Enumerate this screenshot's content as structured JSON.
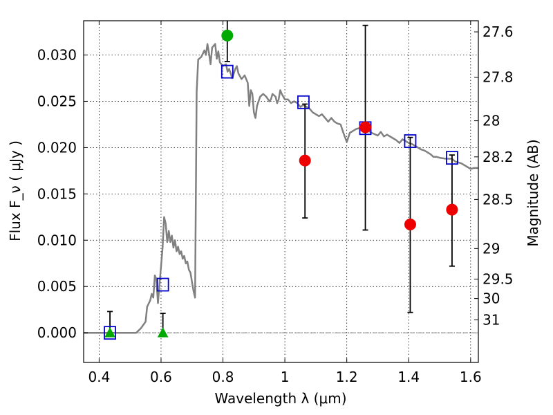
{
  "chart_data": {
    "type": "scatter",
    "xlabel": "Wavelength  λ (μm)",
    "ylabel": "Flux  F_ν  ( μJy )",
    "ylabel_right": "Magnitude (AB)",
    "xlim": [
      0.35,
      1.625
    ],
    "ylim": [
      -0.0032,
      0.0337
    ],
    "grid": true,
    "xticks": [
      0.4,
      0.6,
      0.8,
      1.0,
      1.2,
      1.4,
      1.6
    ],
    "xtick_labels": [
      "0.4",
      "0.6",
      "0.8",
      "1",
      "1.2",
      "1.4",
      "1.6"
    ],
    "yticks": [
      0.0,
      0.005,
      0.01,
      0.015,
      0.02,
      0.025,
      0.03
    ],
    "ytick_labels": [
      "0.000",
      "0.005",
      "0.010",
      "0.015",
      "0.020",
      "0.025",
      "0.030"
    ],
    "right_ticks": [
      {
        "label": "27.6",
        "flux": 0.0325
      },
      {
        "label": "27.8",
        "flux": 0.0276
      },
      {
        "label": "28",
        "flux": 0.0229
      },
      {
        "label": "28.2",
        "flux": 0.019
      },
      {
        "label": "28.5",
        "flux": 0.0144
      },
      {
        "label": "29",
        "flux": 0.0091
      },
      {
        "label": "29.5",
        "flux": 0.0058
      },
      {
        "label": "30",
        "flux": 0.0037
      },
      {
        "label": "31",
        "flux": 0.0014
      }
    ],
    "series": [
      {
        "kind": "model_sed_line",
        "color": "#808080",
        "points": [
          [
            0.35,
            0.0
          ],
          [
            0.52,
            0.0
          ],
          [
            0.535,
            0.0005
          ],
          [
            0.55,
            0.0012
          ],
          [
            0.555,
            0.0028
          ],
          [
            0.565,
            0.0035
          ],
          [
            0.57,
            0.0042
          ],
          [
            0.575,
            0.0038
          ],
          [
            0.58,
            0.0062
          ],
          [
            0.585,
            0.0058
          ],
          [
            0.59,
            0.0032
          ],
          [
            0.595,
            0.0052
          ],
          [
            0.6,
            0.0072
          ],
          [
            0.605,
            0.0092
          ],
          [
            0.61,
            0.0125
          ],
          [
            0.615,
            0.0118
          ],
          [
            0.62,
            0.0098
          ],
          [
            0.625,
            0.011
          ],
          [
            0.63,
            0.0098
          ],
          [
            0.635,
            0.0105
          ],
          [
            0.64,
            0.0092
          ],
          [
            0.645,
            0.01
          ],
          [
            0.65,
            0.0088
          ],
          [
            0.655,
            0.0093
          ],
          [
            0.66,
            0.0085
          ],
          [
            0.665,
            0.0088
          ],
          [
            0.67,
            0.008
          ],
          [
            0.675,
            0.0083
          ],
          [
            0.68,
            0.0075
          ],
          [
            0.685,
            0.0077
          ],
          [
            0.69,
            0.0068
          ],
          [
            0.695,
            0.0065
          ],
          [
            0.7,
            0.0055
          ],
          [
            0.705,
            0.0045
          ],
          [
            0.71,
            0.0038
          ],
          [
            0.715,
            0.026
          ],
          [
            0.72,
            0.0295
          ],
          [
            0.73,
            0.0298
          ],
          [
            0.74,
            0.0305
          ],
          [
            0.745,
            0.03
          ],
          [
            0.75,
            0.0312
          ],
          [
            0.755,
            0.0302
          ],
          [
            0.76,
            0.029
          ],
          [
            0.765,
            0.0308
          ],
          [
            0.775,
            0.0312
          ],
          [
            0.78,
            0.0296
          ],
          [
            0.785,
            0.0304
          ],
          [
            0.79,
            0.0292
          ],
          [
            0.8,
            0.0288
          ],
          [
            0.81,
            0.029
          ],
          [
            0.815,
            0.0282
          ],
          [
            0.82,
            0.0285
          ],
          [
            0.83,
            0.0275
          ],
          [
            0.84,
            0.0285
          ],
          [
            0.845,
            0.0288
          ],
          [
            0.85,
            0.028
          ],
          [
            0.86,
            0.0274
          ],
          [
            0.87,
            0.0278
          ],
          [
            0.88,
            0.027
          ],
          [
            0.885,
            0.0245
          ],
          [
            0.89,
            0.0262
          ],
          [
            0.895,
            0.0258
          ],
          [
            0.9,
            0.0238
          ],
          [
            0.905,
            0.0232
          ],
          [
            0.91,
            0.0245
          ],
          [
            0.92,
            0.0255
          ],
          [
            0.93,
            0.0258
          ],
          [
            0.94,
            0.0255
          ],
          [
            0.95,
            0.025
          ],
          [
            0.955,
            0.0252
          ],
          [
            0.96,
            0.0258
          ],
          [
            0.97,
            0.0255
          ],
          [
            0.975,
            0.0248
          ],
          [
            0.98,
            0.0252
          ],
          [
            0.985,
            0.0262
          ],
          [
            0.99,
            0.0258
          ],
          [
            1.0,
            0.0252
          ],
          [
            1.01,
            0.0252
          ],
          [
            1.02,
            0.0248
          ],
          [
            1.03,
            0.025
          ],
          [
            1.04,
            0.0248
          ],
          [
            1.05,
            0.0244
          ],
          [
            1.06,
            0.0246
          ],
          [
            1.07,
            0.0244
          ],
          [
            1.08,
            0.0242
          ],
          [
            1.09,
            0.0238
          ],
          [
            1.1,
            0.0236
          ],
          [
            1.11,
            0.0234
          ],
          [
            1.12,
            0.0236
          ],
          [
            1.13,
            0.0232
          ],
          [
            1.14,
            0.0228
          ],
          [
            1.15,
            0.0232
          ],
          [
            1.16,
            0.0228
          ],
          [
            1.17,
            0.0226
          ],
          [
            1.18,
            0.0225
          ],
          [
            1.19,
            0.0215
          ],
          [
            1.2,
            0.0206
          ],
          [
            1.21,
            0.0216
          ],
          [
            1.22,
            0.0218
          ],
          [
            1.23,
            0.022
          ],
          [
            1.24,
            0.0221
          ],
          [
            1.25,
            0.0222
          ],
          [
            1.26,
            0.022
          ],
          [
            1.27,
            0.0218
          ],
          [
            1.28,
            0.0216
          ],
          [
            1.3,
            0.0213
          ],
          [
            1.31,
            0.0217
          ],
          [
            1.32,
            0.0212
          ],
          [
            1.33,
            0.0214
          ],
          [
            1.35,
            0.021
          ],
          [
            1.36,
            0.0208
          ],
          [
            1.37,
            0.0205
          ],
          [
            1.38,
            0.0209
          ],
          [
            1.39,
            0.0207
          ],
          [
            1.4,
            0.0205
          ],
          [
            1.41,
            0.0204
          ],
          [
            1.42,
            0.0202
          ],
          [
            1.43,
            0.02
          ],
          [
            1.44,
            0.0198
          ],
          [
            1.45,
            0.0197
          ],
          [
            1.46,
            0.0195
          ],
          [
            1.47,
            0.0193
          ],
          [
            1.48,
            0.019
          ],
          [
            1.49,
            0.019
          ],
          [
            1.5,
            0.0189
          ],
          [
            1.52,
            0.0188
          ],
          [
            1.54,
            0.0188
          ],
          [
            1.55,
            0.0185
          ],
          [
            1.56,
            0.0184
          ],
          [
            1.57,
            0.0183
          ],
          [
            1.58,
            0.0181
          ],
          [
            1.59,
            0.0179
          ],
          [
            1.6,
            0.0177
          ],
          [
            1.61,
            0.0178
          ],
          [
            1.625,
            0.0178
          ]
        ]
      },
      {
        "kind": "model_band_flux",
        "marker": "open-square",
        "color": "#0000cc",
        "points": [
          [
            0.435,
            0.0
          ],
          [
            0.606,
            0.0052
          ],
          [
            0.814,
            0.0282
          ],
          [
            1.06,
            0.0249
          ],
          [
            1.26,
            0.0221
          ],
          [
            1.405,
            0.0207
          ],
          [
            1.54,
            0.0189
          ]
        ]
      },
      {
        "kind": "nondetection",
        "marker": "triangle",
        "color": "#00aa00",
        "points": [
          [
            0.435,
            0.0
          ],
          [
            0.606,
            0.0
          ]
        ]
      },
      {
        "kind": "detection",
        "marker": "circle",
        "color": "#00aa00",
        "points": [
          [
            0.814,
            0.0321
          ]
        ]
      },
      {
        "kind": "detection",
        "marker": "circle",
        "color": "#ee0000",
        "points": [
          [
            1.065,
            0.0186
          ],
          [
            1.26,
            0.0222
          ],
          [
            1.405,
            0.0117
          ],
          [
            1.54,
            0.0133
          ]
        ]
      }
    ],
    "errorbars": [
      {
        "x": 0.435,
        "low": 0.0,
        "high": 0.0023
      },
      {
        "x": 0.606,
        "low": -0.0001,
        "high": 0.0021
      },
      {
        "x": 0.814,
        "low": 0.0293,
        "high": 0.0337
      },
      {
        "x": 1.065,
        "low": 0.0124,
        "high": 0.0247
      },
      {
        "x": 1.26,
        "low": 0.0111,
        "high": 0.0332
      },
      {
        "x": 1.405,
        "low": 0.0022,
        "high": 0.0211
      },
      {
        "x": 1.54,
        "low": 0.0072,
        "high": 0.0192
      }
    ]
  }
}
